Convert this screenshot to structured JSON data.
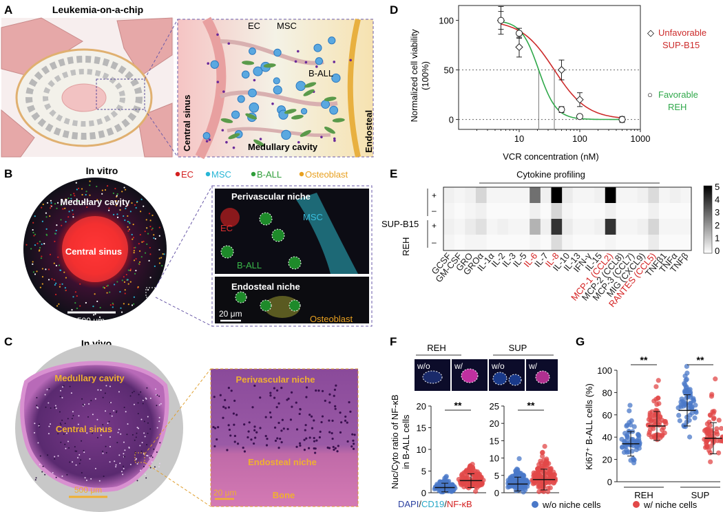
{
  "panels": {
    "A": {
      "letter": "A",
      "title": "Leukemia-on-a-chip",
      "labels": [
        "EC",
        "MSC",
        "B-ALL",
        "Central sinus",
        "Medullary cavity",
        "Endosteal"
      ]
    },
    "B": {
      "letter": "B",
      "title": "In vitro",
      "legend": [
        {
          "text": "EC",
          "color": "#d42020"
        },
        {
          "text": "MSC",
          "color": "#27b6d6"
        },
        {
          "text": "B-ALL",
          "color": "#2f9e3a"
        },
        {
          "text": "Osteoblast",
          "color": "#e8a020"
        }
      ],
      "labels": {
        "medullary": "Medullary cavity",
        "sinus": "Central sinus",
        "scale": "500 μm",
        "perivascular": "Perivascular niche",
        "ec": "EC",
        "msc": "MSC",
        "ball": "B-ALL",
        "endosteal": "Endosteal niche",
        "scale2": "20 μm",
        "osteoblast": "Osteoblast"
      }
    },
    "C": {
      "letter": "C",
      "title": "In vivo",
      "labels": {
        "medullary": "Medullary cavity",
        "sinus": "Central sinus",
        "scale": "500 μm",
        "perivascular": "Perivascular niche",
        "endosteal": "Endosteal niche",
        "scale2": "20 μm",
        "bone": "Bone"
      }
    },
    "D": {
      "letter": "D",
      "ylabel1": "Normalized cell viability",
      "ylabel2": "(100%)",
      "xlabel": "VCR concentration (nM)",
      "legend": [
        {
          "symbol": "◇",
          "text1": "Unfavorable",
          "text2": "SUP-B15",
          "color": "#cc2a2a"
        },
        {
          "symbol": "○",
          "text1": "Favorable",
          "text2": "REH",
          "color": "#2fa84a"
        }
      ]
    },
    "E": {
      "letter": "E",
      "title": "Cytokine profiling",
      "rowgroups": [
        "SUP-B15",
        "REH"
      ],
      "signs": [
        "+",
        "–",
        "+",
        "–"
      ],
      "colorbar": [
        "5",
        "4",
        "3",
        "2",
        "1",
        "0"
      ]
    },
    "F": {
      "letter": "F",
      "groups": [
        "REH",
        "SUP"
      ],
      "img_labels": [
        "w/o",
        "w/",
        "w/o",
        "w/"
      ],
      "ylabel1": "Nuc/Cyto ratio of NF-κB",
      "ylabel2": "in B-ALL cells",
      "sig": [
        "**",
        "**"
      ],
      "stain": [
        {
          "text": "DAPI",
          "color": "#2a3fa0"
        },
        {
          "text": "/",
          "color": "#222222"
        },
        {
          "text": "CD19",
          "color": "#27a8c8"
        },
        {
          "text": "/",
          "color": "#222222"
        },
        {
          "text": "NF-κB",
          "color": "#d42020"
        }
      ]
    },
    "G": {
      "letter": "G",
      "ylabel": "Ki67⁺ B-ALL cells (%)",
      "groups": [
        "REH",
        "SUP"
      ],
      "sig": [
        "**",
        "**"
      ]
    },
    "legend_bottom": [
      {
        "text": "w/o niche cells",
        "color": "#4a78c8"
      },
      {
        "text": "w/ niche cells",
        "color": "#e24848"
      }
    ]
  },
  "chart_data": [
    {
      "type": "scatter",
      "panel": "D",
      "xlabel": "VCR concentration (nM)",
      "ylabel": "Normalized cell viability (100%)",
      "xscale": "log",
      "xlim": [
        1,
        1000
      ],
      "ylim": [
        -10,
        115
      ],
      "xticks": [
        {
          "v": 10,
          "label": "10"
        },
        {
          "v": 100,
          "label": "100"
        },
        {
          "v": 1000,
          "label": "1000"
        }
      ],
      "yticks": [
        {
          "v": 0,
          "label": "0"
        },
        {
          "v": 50,
          "label": "50"
        },
        {
          "v": 100,
          "label": "100"
        }
      ],
      "reference_lines": [
        0,
        50
      ],
      "ic50": [
        21,
        38
      ],
      "series": [
        {
          "name": "Unfavorable SUP-B15",
          "color": "#cc2a2a",
          "marker": "diamond",
          "x": [
            5,
            10,
            50,
            100,
            500
          ],
          "y": [
            100,
            73,
            50,
            20,
            0
          ],
          "err": [
            14,
            10,
            10,
            7,
            3
          ],
          "fit": {
            "top": 100,
            "ec50": 38,
            "hill": 1.6
          }
        },
        {
          "name": "Favorable REH",
          "color": "#2fa84a",
          "marker": "circle",
          "x": [
            5,
            10,
            50,
            100,
            500
          ],
          "y": [
            100,
            87,
            10,
            3,
            0
          ],
          "err": [
            9,
            5,
            3,
            2,
            2
          ],
          "fit": {
            "top": 100,
            "ec50": 21,
            "hill": 3.0
          }
        }
      ]
    },
    {
      "type": "heatmap",
      "panel": "E",
      "title": "Cytokine profiling",
      "columns": [
        "GCSF",
        "GM-CSF",
        "GRO",
        "GROα",
        "IL-1α",
        "IL-2",
        "IL-3",
        "IL-5",
        "IL-6",
        "IL-7",
        "IL-8",
        "IL-10",
        "IL-13",
        "IFN-γ",
        "IL-15",
        "MCP-1 (CCL2)",
        "MCP-2 (CCL8)",
        "MCP-3 (CCL7)",
        "MIG (CXCL9)",
        "RANTES (CCL5)",
        "TNFβ1",
        "TNFα",
        "TNFβ"
      ],
      "highlight_columns": [
        "IL-6",
        "IL-8",
        "MCP-1 (CCL2)",
        "RANTES (CCL5)"
      ],
      "rows": [
        "SUP-B15 +",
        "SUP-B15 –",
        "REH +",
        "REH –"
      ],
      "values": [
        [
          0.3,
          0.2,
          0.3,
          0.8,
          0.2,
          0.2,
          0.2,
          0.2,
          2.8,
          0.3,
          5.0,
          0.4,
          0.2,
          0.2,
          0.3,
          5.0,
          0.2,
          0.2,
          0.3,
          0.7,
          0.2,
          0.3,
          0.2
        ],
        [
          0.2,
          0.1,
          0.2,
          0.3,
          0.1,
          0.1,
          0.1,
          0.1,
          0.3,
          0.1,
          0.8,
          0.2,
          0.1,
          0.1,
          0.1,
          0.3,
          0.1,
          0.1,
          0.1,
          0.3,
          0.1,
          0.1,
          0.1
        ],
        [
          0.3,
          0.2,
          0.4,
          0.6,
          0.2,
          0.3,
          0.2,
          0.2,
          1.5,
          0.3,
          4.0,
          0.4,
          0.2,
          0.2,
          0.3,
          4.0,
          0.2,
          0.2,
          0.3,
          0.8,
          0.2,
          0.2,
          0.2
        ],
        [
          0.2,
          0.1,
          0.2,
          0.2,
          0.1,
          0.1,
          0.1,
          0.1,
          0.2,
          0.1,
          0.7,
          0.2,
          0.1,
          0.1,
          0.1,
          0.2,
          0.1,
          0.1,
          0.1,
          0.4,
          0.1,
          0.1,
          0.1
        ]
      ],
      "scale": [
        0,
        5
      ]
    },
    {
      "type": "scatter",
      "panel": "F-REH",
      "ylim": [
        0,
        20
      ],
      "yticks": [
        {
          "v": 0,
          "label": "0"
        },
        {
          "v": 5,
          "label": "5"
        },
        {
          "v": 10,
          "label": "10"
        },
        {
          "v": 15,
          "label": "15"
        },
        {
          "v": 20,
          "label": "20"
        }
      ],
      "groups": [
        {
          "name": "w/o niche cells",
          "color": "#4a78c8",
          "mean": 1.2,
          "sd": 1.0,
          "n": 110,
          "max": 6
        },
        {
          "name": "w/ niche cells",
          "color": "#e24848",
          "mean": 2.8,
          "sd": 1.6,
          "n": 120,
          "max": 10
        }
      ],
      "significance": "**"
    },
    {
      "type": "scatter",
      "panel": "F-SUP",
      "ylim": [
        0,
        25
      ],
      "yticks": [
        {
          "v": 0,
          "label": "0"
        },
        {
          "v": 5,
          "label": "5"
        },
        {
          "v": 10,
          "label": "10"
        },
        {
          "v": 15,
          "label": "15"
        },
        {
          "v": 20,
          "label": "20"
        },
        {
          "v": 25,
          "label": "25"
        }
      ],
      "groups": [
        {
          "name": "w/o niche cells",
          "color": "#4a78c8",
          "mean": 2.5,
          "sd": 2.0,
          "n": 120,
          "max": 12
        },
        {
          "name": "w/ niche cells",
          "color": "#e24848",
          "mean": 3.8,
          "sd": 3.0,
          "n": 130,
          "max": 23
        }
      ],
      "significance": "**"
    },
    {
      "type": "scatter",
      "panel": "G",
      "ylabel": "Ki67⁺ B-ALL cells (%)",
      "ylim": [
        0,
        100
      ],
      "yticks": [
        {
          "v": 0,
          "label": "0"
        },
        {
          "v": 20,
          "label": "20"
        },
        {
          "v": 40,
          "label": "40"
        },
        {
          "v": 60,
          "label": "60"
        },
        {
          "v": 80,
          "label": "80"
        },
        {
          "v": 100,
          "label": "100"
        }
      ],
      "categories": [
        "REH",
        "SUP"
      ],
      "groups": [
        {
          "cat": "REH",
          "name": "w/o niche cells",
          "color": "#4a78c8",
          "mean": 34,
          "sd": 11,
          "n": 60
        },
        {
          "cat": "REH",
          "name": "w/ niche cells",
          "color": "#e24848",
          "mean": 50,
          "sd": 13,
          "n": 60
        },
        {
          "cat": "SUP",
          "name": "w/o niche cells",
          "color": "#4a78c8",
          "mean": 64,
          "sd": 14,
          "n": 60
        },
        {
          "cat": "SUP",
          "name": "w/ niche cells",
          "color": "#e24848",
          "mean": 39,
          "sd": 14,
          "n": 60
        }
      ],
      "significance": [
        "**",
        "**"
      ]
    }
  ]
}
